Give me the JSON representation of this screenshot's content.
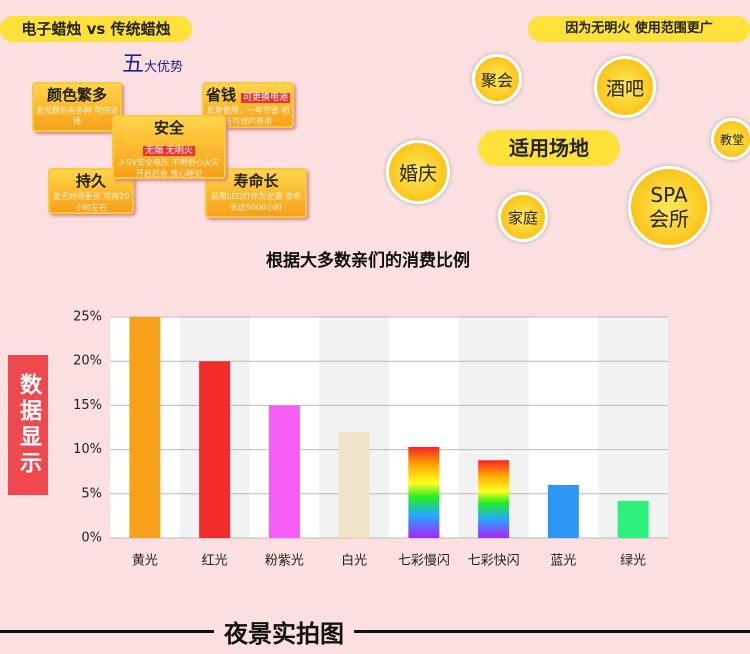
{
  "header": {
    "left": "电子蜡烛 vs 传统蜡烛",
    "right": "因为无明火 使用范围更广",
    "advantages_title_big": "五",
    "advantages_title": "大优势",
    "advantages": [
      {
        "title": "颜色繁多",
        "text": "发光颜色有多种 可供选择"
      },
      {
        "title": "省钱",
        "tag": "可更换电池",
        "text": "反复使用，一年节省 相当可观的费用"
      },
      {
        "title": "安全",
        "tag": "无烟 无明火",
        "text": "3-5V安全电压 不用担心火灾 开启后会 放心睡觉"
      },
      {
        "title": "持久",
        "text": "发光时间更长 可亮20小时左右"
      },
      {
        "title": "寿命长",
        "text": "采用LED灯作为光源 寿命长达5000小时"
      }
    ],
    "venues_title": "适用场地",
    "venues": [
      "聚会",
      "酒吧",
      "教堂",
      "婚庆",
      "家庭",
      "SPA 会所"
    ]
  },
  "side_label": "数据显示",
  "footer": "夜景实拍图",
  "chart_data": {
    "type": "bar",
    "title": "根据大多数亲们的消费比例",
    "categories": [
      "黄光",
      "红光",
      "粉紫光",
      "白光",
      "七彩慢闪",
      "七彩快闪",
      "蓝光",
      "绿光"
    ],
    "values": [
      25,
      20,
      15,
      12,
      10.3,
      8.8,
      6,
      4.2
    ],
    "colors": [
      "#f7a01a",
      "#f22b2b",
      "#f55df5",
      "#efe3c8",
      "rainbow",
      "rainbow",
      "#2e96f5",
      "#2ef07a"
    ],
    "ylim": [
      0,
      25
    ],
    "yticks": [
      {
        "value": 0,
        "label": "0%"
      },
      {
        "value": 5,
        "label": "5%"
      },
      {
        "value": 10,
        "label": "10%"
      },
      {
        "value": 15,
        "label": "15%"
      },
      {
        "value": 20,
        "label": "20%"
      },
      {
        "value": 25,
        "label": "25%"
      }
    ],
    "grid": true
  }
}
